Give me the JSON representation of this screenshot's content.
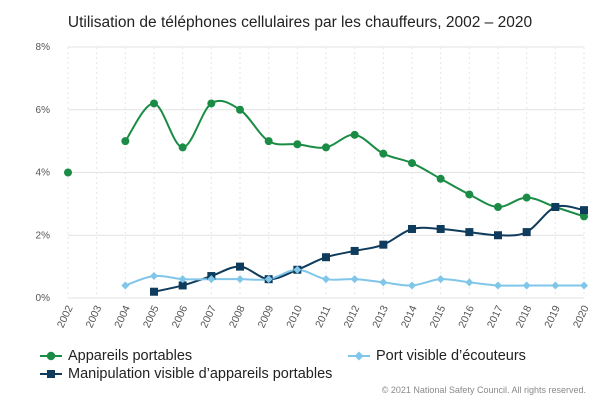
{
  "chart_data": {
    "type": "line",
    "title": "Utilisation de téléphones cellulaires par les chauffeurs, 2002 – 2020",
    "xlabel": "",
    "ylabel": "",
    "x": [
      "2002",
      "2003",
      "2004",
      "2005",
      "2006",
      "2007",
      "2008",
      "2009",
      "2010",
      "2011",
      "2012",
      "2013",
      "2014",
      "2015",
      "2016",
      "2017",
      "2018",
      "2019",
      "2020"
    ],
    "ylim": [
      0,
      8
    ],
    "yticks": [
      "0%",
      "2%",
      "4%",
      "6%",
      "8%"
    ],
    "grid": "horizontal",
    "legend_position": "bottom",
    "series": [
      {
        "name": "Appareils portables",
        "color": "#1a8c45",
        "marker": "circle",
        "values": [
          4.0,
          null,
          5.0,
          6.2,
          4.8,
          6.2,
          6.0,
          5.0,
          4.9,
          4.8,
          5.2,
          4.6,
          4.3,
          3.8,
          3.3,
          2.9,
          3.2,
          2.9,
          2.6
        ]
      },
      {
        "name": "Manipulation visible d’appareils portables",
        "color": "#0f3b5c",
        "marker": "square",
        "values": [
          null,
          null,
          null,
          0.2,
          0.4,
          0.7,
          1.0,
          0.6,
          0.9,
          1.3,
          1.5,
          1.7,
          2.2,
          2.2,
          2.1,
          2.0,
          2.1,
          2.9,
          2.8
        ]
      },
      {
        "name": "Port visible d’écouteurs",
        "color": "#7fc6e8",
        "marker": "diamond",
        "values": [
          null,
          null,
          0.4,
          0.7,
          0.6,
          0.6,
          0.6,
          0.6,
          0.9,
          0.6,
          0.6,
          0.5,
          0.4,
          0.6,
          0.5,
          0.4,
          0.4,
          0.4,
          0.4
        ]
      }
    ]
  },
  "copyright": "© 2021 National Safety Council. All rights reserved."
}
